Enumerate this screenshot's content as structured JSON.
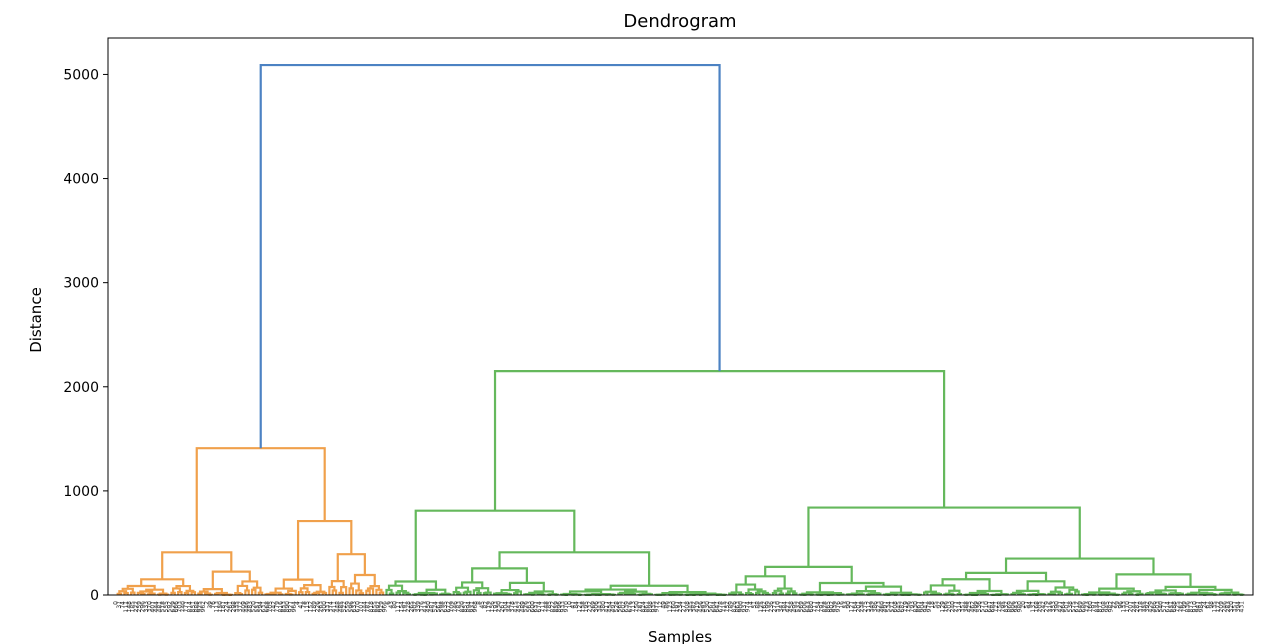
{
  "chart_data": {
    "type": "dendrogram",
    "title": "Dendrogram",
    "xlabel": "Samples",
    "ylabel": "Distance",
    "ylim": [
      0,
      5350
    ],
    "yticks": [
      0,
      1000,
      2000,
      3000,
      4000,
      5000
    ],
    "grid": false,
    "colors": {
      "root": "#4c82c3",
      "cluster_1": "#f0a04b",
      "cluster_2": "#65b85c"
    },
    "tree": {
      "height": 5090,
      "color": "root",
      "children": [
        {
          "height": 1410,
          "color": "cluster_1",
          "children": [
            {
              "height": 410,
              "color": "cluster_1",
              "leaves": 44
            },
            {
              "height": 710,
              "color": "cluster_1",
              "leaves": 36
            }
          ]
        },
        {
          "height": 2150,
          "color": "cluster_2",
          "children": [
            {
              "height": 810,
              "color": "cluster_2",
              "children": [
                {
                  "height": 130,
                  "color": "cluster_2",
                  "leaves": 20
                },
                {
                  "height": 410,
                  "color": "cluster_2",
                  "leaves": 82
                }
              ]
            },
            {
              "height": 840,
              "color": "cluster_2",
              "children": [
                {
                  "height": 270,
                  "color": "cluster_2",
                  "leaves": 58
                },
                {
                  "height": 350,
                  "color": "cluster_2",
                  "leaves": 96
                }
              ]
            }
          ]
        }
      ]
    }
  }
}
